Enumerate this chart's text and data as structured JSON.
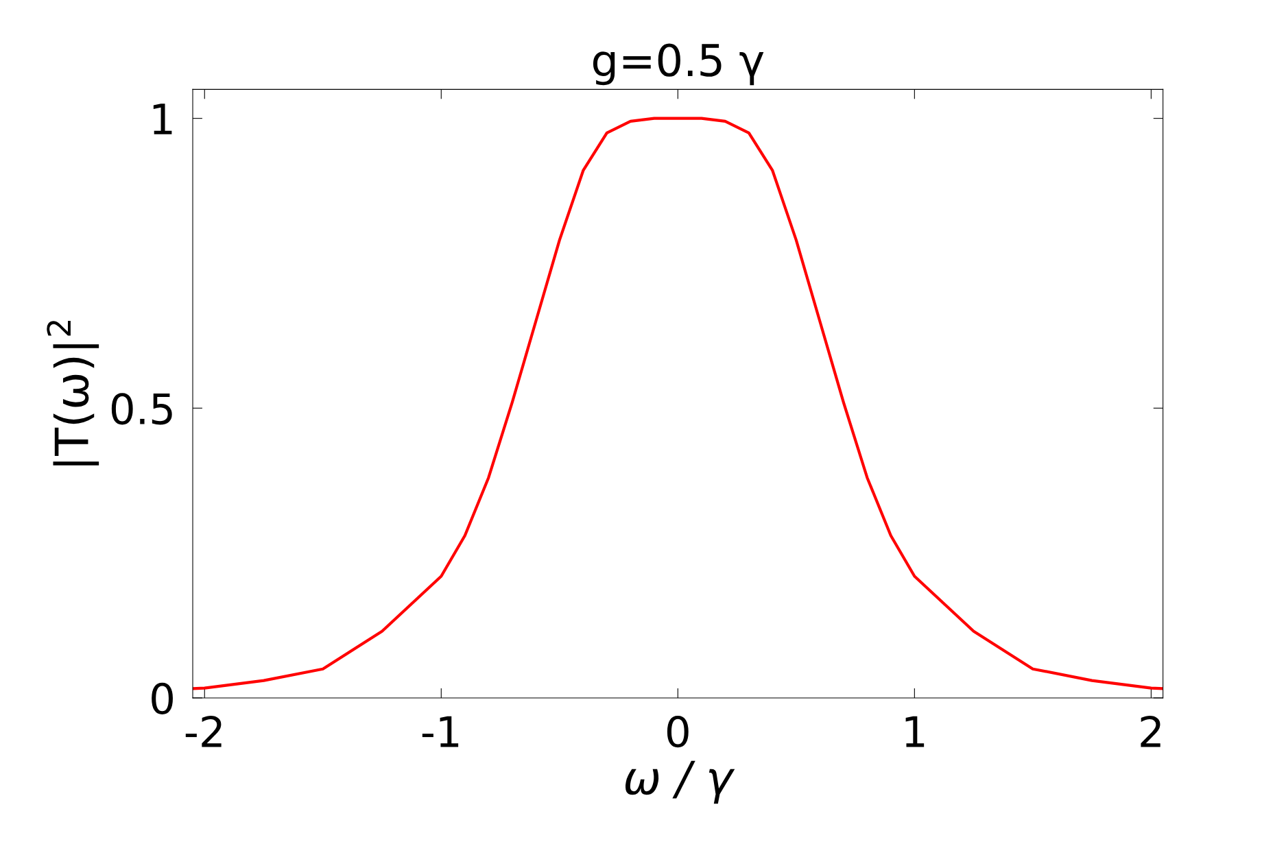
{
  "chart_data": {
    "type": "line",
    "title": "g=0.5 γ",
    "xlabel": "ω / γ",
    "ylabel": "|T(ω)|$^{2}$",
    "x": [
      -2.05,
      -2.0,
      -1.75,
      -1.5,
      -1.25,
      -1.0,
      -0.9,
      -0.8,
      -0.7,
      -0.6,
      -0.5,
      -0.4,
      -0.3,
      -0.2,
      -0.1,
      0,
      0.1,
      0.2,
      0.3,
      0.4,
      0.5,
      0.6,
      0.7,
      0.8,
      0.9,
      1.0,
      1.25,
      1.5,
      1.75,
      2.0,
      2.05
    ],
    "series": [
      {
        "color": "#ff0000",
        "values": [
          0.016,
          0.017,
          0.03,
          0.05,
          0.115,
          0.21,
          0.28,
          0.38,
          0.51,
          0.65,
          0.79,
          0.91,
          0.975,
          0.995,
          1.0,
          1.0,
          1.0,
          0.995,
          0.975,
          0.91,
          0.79,
          0.65,
          0.51,
          0.38,
          0.28,
          0.21,
          0.115,
          0.05,
          0.03,
          0.017,
          0.016
        ]
      }
    ],
    "xlim": [
      -2.05,
      2.05
    ],
    "ylim": [
      0,
      1.05
    ],
    "xticks": [
      -2,
      -1,
      0,
      1,
      2
    ],
    "yticks": [
      0,
      0.5,
      1
    ],
    "grid": false,
    "legend": false,
    "marker": "none",
    "line_style": "solid"
  }
}
